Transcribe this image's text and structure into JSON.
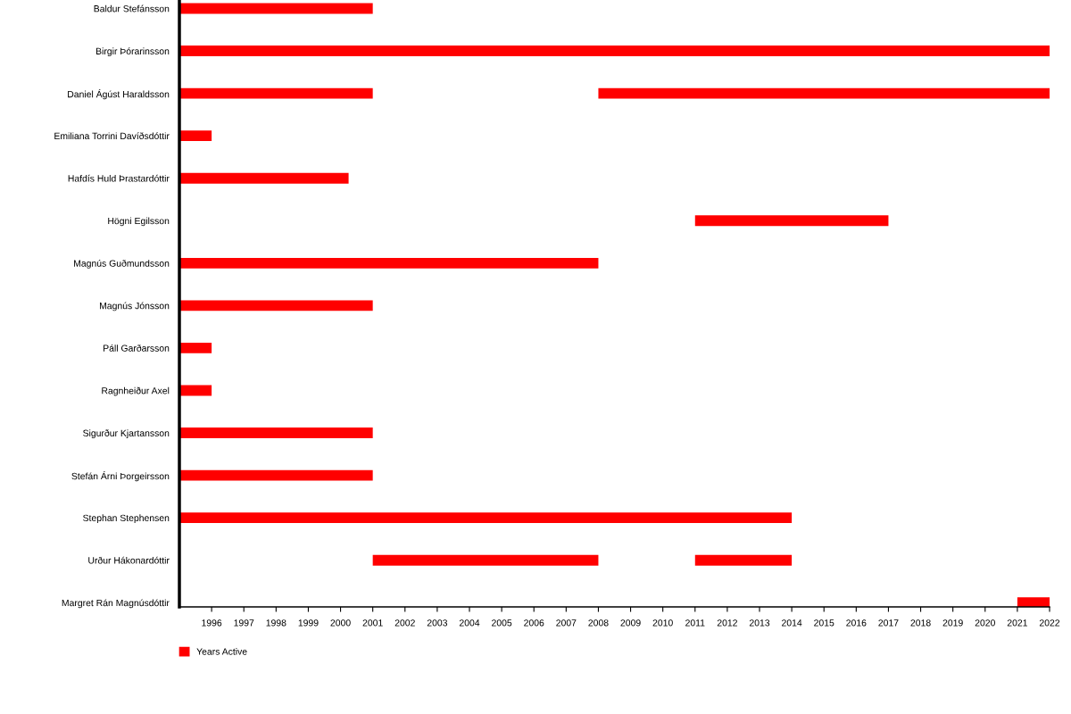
{
  "chart_data": {
    "type": "bar",
    "orientation": "horizontal",
    "categories": [
      "Baldur Stefánsson",
      "Birgir Þórarinsson",
      "Daniel Ágúst Haraldsson",
      "Emiliana Torrini Davíðsdóttir",
      "Hafdís Huld Þrastardóttir",
      "Högni Egilsson",
      "Magnús Guðmundsson",
      "Magnús Jónsson",
      "Páll Garðarsson",
      "Ragnheiður Axel",
      "Sigurður Kjartansson",
      "Stefán Árni Þorgeirsson",
      "Stephan Stephensen",
      "Urður Hákonardóttir",
      "Margret Rán Magnúsdóttir"
    ],
    "series": [
      {
        "name": "Years Active",
        "color": "#ff0000",
        "base": [
          1995,
          1995,
          1995,
          1995,
          1995,
          2011,
          1995,
          1995,
          1995,
          1995,
          1995,
          1995,
          1995,
          2001,
          2021
        ],
        "values": [
          6,
          27,
          6,
          1,
          5.25,
          6,
          13,
          6,
          1,
          1,
          6,
          6,
          19,
          7,
          1
        ]
      },
      {
        "color": "#ff0000",
        "base": [
          null,
          null,
          2008,
          null,
          null,
          null,
          null,
          null,
          null,
          null,
          null,
          null,
          null,
          2011,
          null
        ],
        "values": [
          null,
          null,
          14,
          null,
          null,
          null,
          null,
          null,
          null,
          null,
          null,
          null,
          null,
          3,
          null
        ]
      }
    ],
    "xlim": [
      1995,
      2022
    ],
    "xticks": [
      1996,
      1997,
      1998,
      1999,
      2000,
      2001,
      2002,
      2003,
      2004,
      2005,
      2006,
      2007,
      2008,
      2009,
      2010,
      2011,
      2012,
      2013,
      2014,
      2015,
      2016,
      2017,
      2018,
      2019,
      2020,
      2021,
      2022
    ],
    "grid": false,
    "legend": "bottom left"
  }
}
